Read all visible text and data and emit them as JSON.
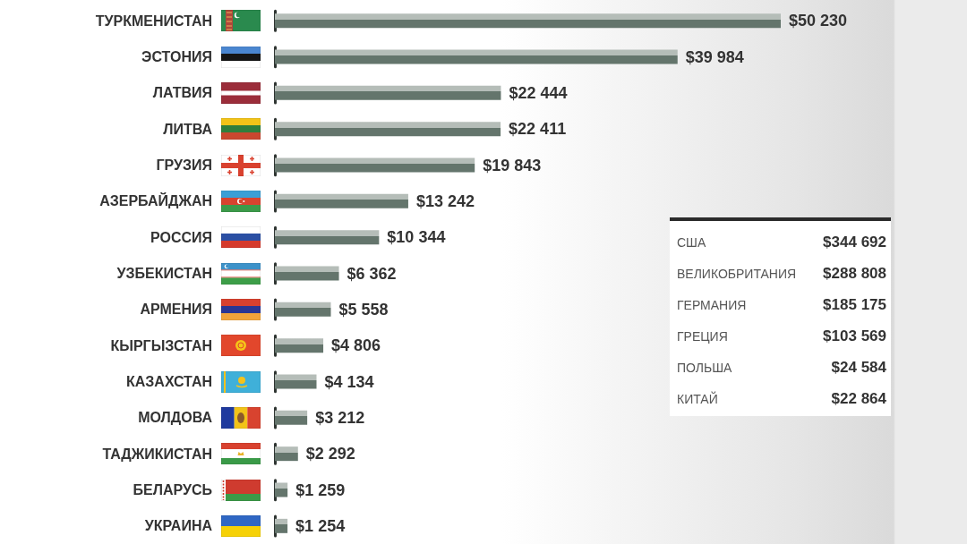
{
  "chart_data": [
    {
      "type": "bar",
      "orientation": "horizontal",
      "categories": [
        "ТУРКМЕНИСТАН",
        "ЭСТОНИЯ",
        "ЛАТВИЯ",
        "ЛИТВА",
        "ГРУЗИЯ",
        "АЗЕРБАЙДЖАН",
        "РОССИЯ",
        "УЗБЕКИСТАН",
        "АРМЕНИЯ",
        "КЫРГЫЗСТАН",
        "КАЗАХСТАН",
        "МОЛДОВА",
        "ТАДЖИКИСТАН",
        "БЕЛАРУСЬ",
        "УКРАИНА"
      ],
      "values": [
        50230,
        39984,
        22444,
        22411,
        19843,
        13242,
        10344,
        6362,
        5558,
        4806,
        4134,
        3212,
        2292,
        1259,
        1254
      ],
      "value_labels": [
        "$50 230",
        "$39 984",
        "$22 444",
        "$22 411",
        "$19 843",
        "$13 242",
        "$10 344",
        "$6 362",
        "$5 558",
        "$4 806",
        "$4 134",
        "$3 212",
        "$2 292",
        "$1 259",
        "$1 254"
      ],
      "color": "#64756c",
      "tick_labels": "y"
    },
    {
      "type": "other",
      "annotations": [
        "США",
        "$344 692",
        "ВЕЛИКОБРИТАНИЯ",
        "$288 808",
        "ГЕРМАНИЯ",
        "$185 175",
        "ГРЕЦИЯ",
        "$103 569",
        "ПОЛЬША",
        "$24 584",
        "КИТАЙ",
        "$22 864"
      ]
    }
  ]
}
